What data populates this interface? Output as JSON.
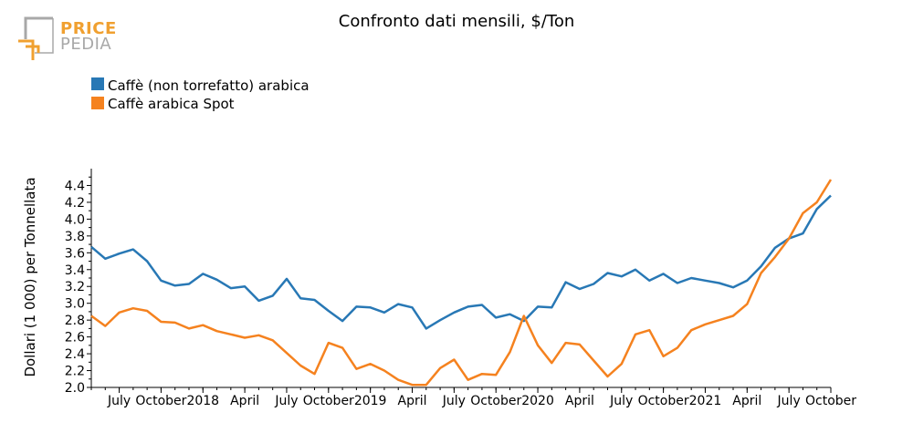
{
  "logo": {
    "line1": "PRICE",
    "line2": "PEDIA",
    "colors": {
      "accent": "#f0a030",
      "gray": "#9a9a9a"
    }
  },
  "chart_data": {
    "type": "line",
    "title": "Confronto dati mensili, $/Ton",
    "xlabel": "",
    "ylabel": "Dollari (1 000) per Tonnellata",
    "ylim": [
      2.0,
      4.6
    ],
    "yticks": [
      2.0,
      2.2,
      2.4,
      2.6,
      2.8,
      3.0,
      3.2,
      3.4,
      3.6,
      3.8,
      4.0,
      4.2,
      4.4
    ],
    "ytick_labels": [
      "2.0",
      "2.2",
      "2.4",
      "2.6",
      "2.8",
      "3.0",
      "3.2",
      "3.4",
      "3.6",
      "3.8",
      "4.0",
      "4.2",
      "4.4"
    ],
    "x": [
      "2017-05",
      "2017-06",
      "2017-07",
      "2017-08",
      "2017-09",
      "2017-10",
      "2017-11",
      "2017-12",
      "2018-01",
      "2018-02",
      "2018-03",
      "2018-04",
      "2018-05",
      "2018-06",
      "2018-07",
      "2018-08",
      "2018-09",
      "2018-10",
      "2018-11",
      "2018-12",
      "2019-01",
      "2019-02",
      "2019-03",
      "2019-04",
      "2019-05",
      "2019-06",
      "2019-07",
      "2019-08",
      "2019-09",
      "2019-10",
      "2019-11",
      "2019-12",
      "2020-01",
      "2020-02",
      "2020-03",
      "2020-04",
      "2020-05",
      "2020-06",
      "2020-07",
      "2020-08",
      "2020-09",
      "2020-10",
      "2020-11",
      "2020-12",
      "2021-01",
      "2021-02",
      "2021-03",
      "2021-04",
      "2021-05",
      "2021-06",
      "2021-07",
      "2021-08",
      "2021-09",
      "2021-10"
    ],
    "xticks": [
      {
        "at": "2017-07",
        "label": "July"
      },
      {
        "at": "2017-10",
        "label": "October"
      },
      {
        "at": "2018-01",
        "label": "2018"
      },
      {
        "at": "2018-04",
        "label": "April"
      },
      {
        "at": "2018-07",
        "label": "July"
      },
      {
        "at": "2018-10",
        "label": "October"
      },
      {
        "at": "2019-01",
        "label": "2019"
      },
      {
        "at": "2019-04",
        "label": "April"
      },
      {
        "at": "2019-07",
        "label": "July"
      },
      {
        "at": "2019-10",
        "label": "October"
      },
      {
        "at": "2020-01",
        "label": "2020"
      },
      {
        "at": "2020-04",
        "label": "April"
      },
      {
        "at": "2020-07",
        "label": "July"
      },
      {
        "at": "2020-10",
        "label": "October"
      },
      {
        "at": "2021-01",
        "label": "2021"
      },
      {
        "at": "2021-04",
        "label": "April"
      },
      {
        "at": "2021-07",
        "label": "July"
      },
      {
        "at": "2021-10",
        "label": "October"
      }
    ],
    "grid": false,
    "legend": "top-left",
    "series": [
      {
        "name": "Caffè (non torrefatto) arabica",
        "color": "#2878b5",
        "values": [
          3.67,
          3.53,
          3.59,
          3.64,
          3.5,
          3.27,
          3.21,
          3.23,
          3.35,
          3.28,
          3.18,
          3.2,
          3.03,
          3.09,
          3.29,
          3.06,
          3.04,
          2.91,
          2.79,
          2.96,
          2.95,
          2.89,
          2.99,
          2.95,
          2.7,
          2.8,
          2.89,
          2.96,
          2.98,
          2.83,
          2.87,
          2.79,
          2.96,
          2.95,
          3.25,
          3.17,
          3.23,
          3.36,
          3.32,
          3.4,
          3.27,
          3.35,
          3.24,
          3.3,
          3.27,
          3.24,
          3.19,
          3.27,
          3.44,
          3.66,
          3.77,
          3.83,
          4.12,
          4.28
        ]
      },
      {
        "name": "Caffè arabica Spot",
        "color": "#f5821f",
        "values": [
          2.85,
          2.73,
          2.89,
          2.94,
          2.91,
          2.78,
          2.77,
          2.7,
          2.74,
          2.67,
          2.63,
          2.59,
          2.62,
          2.56,
          2.41,
          2.26,
          2.16,
          2.53,
          2.47,
          2.22,
          2.28,
          2.2,
          2.09,
          2.03,
          2.03,
          2.23,
          2.33,
          2.09,
          2.16,
          2.15,
          2.42,
          2.85,
          2.5,
          2.29,
          2.53,
          2.51,
          2.32,
          2.13,
          2.28,
          2.63,
          2.68,
          2.37,
          2.47,
          2.68,
          2.75,
          2.8,
          2.85,
          2.99,
          3.36,
          3.55,
          3.77,
          4.07,
          4.2,
          4.47
        ]
      }
    ]
  }
}
